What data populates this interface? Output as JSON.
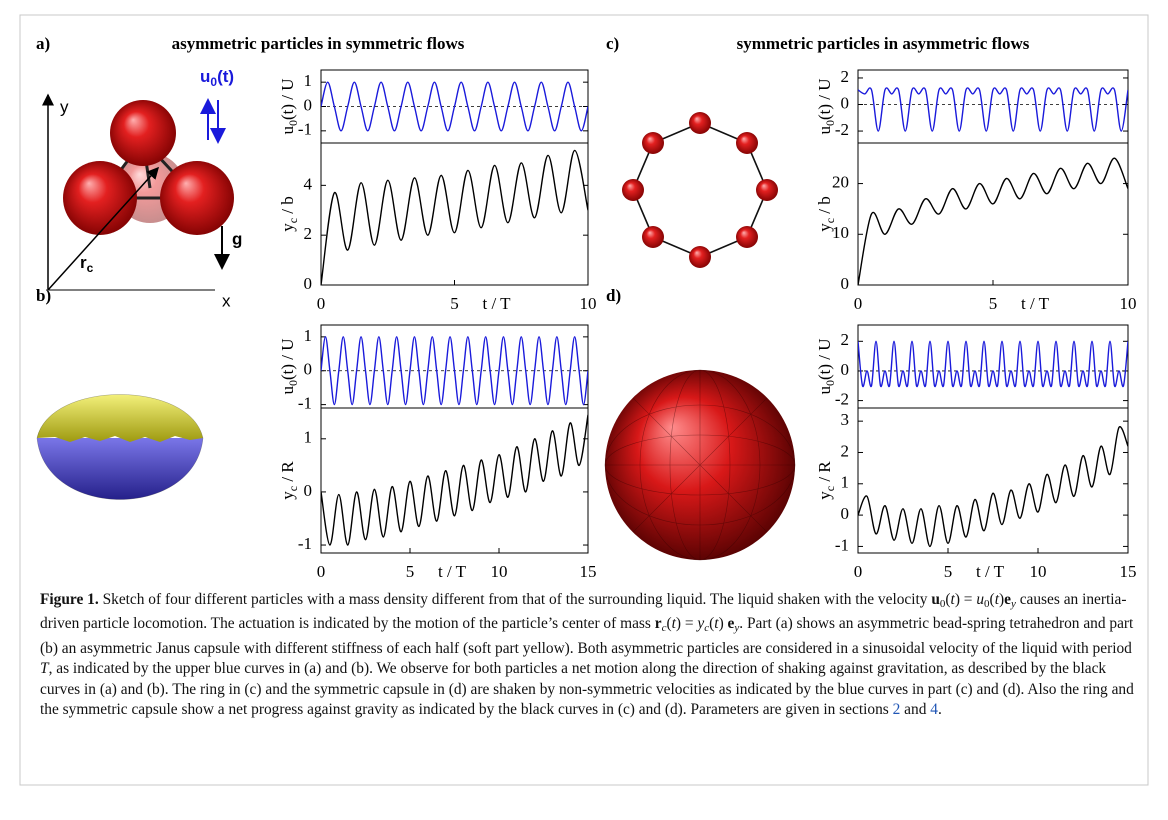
{
  "figure": {
    "panels": [
      {
        "label": "a)",
        "title": "asymmetric particles in symmetric flows"
      },
      {
        "label": "b)"
      },
      {
        "label": "c)",
        "title": "symmetric particles in asymmetric flows"
      },
      {
        "label": "d)"
      }
    ],
    "sketch_labels": {
      "y": "y",
      "x": "x",
      "u": [
        "u",
        "0",
        "(t)"
      ],
      "g": "g",
      "r": [
        "r",
        "c"
      ]
    },
    "caption": [
      {
        "t": "Figure 1.",
        "s": "b"
      },
      {
        "t": " Sketch of four different particles with a mass density different from that of the surrounding liquid. The liquid shaken with the velocity "
      },
      {
        "t": "u",
        "s": "b"
      },
      {
        "t": "0",
        "s": "sub"
      },
      {
        "t": "("
      },
      {
        "t": "t",
        "s": "i"
      },
      {
        "t": ") = "
      },
      {
        "t": "u",
        "s": "i"
      },
      {
        "t": "0",
        "s": "sub"
      },
      {
        "t": "("
      },
      {
        "t": "t",
        "s": "i"
      },
      {
        "t": ")"
      },
      {
        "t": "e",
        "s": "b"
      },
      {
        "t": "y",
        "s": "isub"
      },
      {
        "t": " causes an inertia-driven particle locomotion. The actuation is indicated by the motion of the particle’s center of mass "
      },
      {
        "t": "r",
        "s": "b"
      },
      {
        "t": "c",
        "s": "isub"
      },
      {
        "t": "("
      },
      {
        "t": "t",
        "s": "i"
      },
      {
        "t": ") = "
      },
      {
        "t": "y",
        "s": "i"
      },
      {
        "t": "c",
        "s": "isub"
      },
      {
        "t": "("
      },
      {
        "t": "t",
        "s": "i"
      },
      {
        "t": ") "
      },
      {
        "t": "e",
        "s": "b"
      },
      {
        "t": "y",
        "s": "isub"
      },
      {
        "t": ". Part (a) shows an asymmetric bead-spring tetrahedron and part (b) an asymmetric Janus capsule with different stiffness of each half (soft part yellow). Both asymmetric particles are considered in a sinusoidal velocity of the liquid with period "
      },
      {
        "t": "T",
        "s": "i"
      },
      {
        "t": ", as indicated by the upper blue curves in (a) and (b). We observe for both particles a net motion along the direction of shaking against gravitation, as described by the black curves in (a) and (b). The ring in (c) and the symmetric capsule in (d) are shaken by non-symmetric velocities as indicated by the blue curves in part (c) and (d). Also the ring and the symmetric capsule show a net progress against gravity as indicated by the black curves in (c) and (d). Parameters are given in sections "
      },
      {
        "t": "2",
        "s": "link"
      },
      {
        "t": " and "
      },
      {
        "t": "4",
        "s": "link"
      },
      {
        "t": "."
      }
    ]
  },
  "chart_data": [
    {
      "type": "line",
      "ylabel": [
        "u",
        "0",
        "(t) / U"
      ],
      "color": "#1a1adb",
      "zero_line": true,
      "xlim": [
        0,
        10
      ],
      "ylim": [
        -1.5,
        1.5
      ],
      "yticks": [
        -1,
        0,
        1
      ],
      "x": [
        0,
        0.25,
        0.5,
        0.75,
        1,
        1.25,
        1.5,
        1.75,
        2,
        2.25,
        2.5,
        2.75,
        3,
        3.25,
        3.5,
        3.75,
        4,
        4.25,
        4.5,
        4.75,
        5,
        5.25,
        5.5,
        5.75,
        6,
        6.25,
        6.5,
        6.75,
        7,
        7.25,
        7.5,
        7.75,
        8,
        8.25,
        8.5,
        8.75,
        9,
        9.25,
        9.5,
        9.75,
        10
      ],
      "values": [
        0,
        1,
        0,
        -1,
        0,
        1,
        0,
        -1,
        0,
        1,
        0,
        -1,
        0,
        1,
        0,
        -1,
        0,
        1,
        0,
        -1,
        0,
        1,
        0,
        -1,
        0,
        1,
        0,
        -1,
        0,
        1,
        0,
        -1,
        0,
        1,
        0,
        -1,
        0,
        1,
        0,
        -1,
        0
      ]
    },
    {
      "type": "line",
      "ylabel": [
        "y",
        "c",
        " / b"
      ],
      "color": "#000000",
      "xlim": [
        0,
        10
      ],
      "ylim": [
        0,
        5.7
      ],
      "yticks": [
        0,
        2,
        4
      ],
      "xticks": [
        0,
        5,
        10
      ],
      "xlabel": "t / T",
      "x": [
        0,
        0.5,
        1,
        1.5,
        2,
        2.5,
        3,
        3.5,
        4,
        4.5,
        5,
        5.5,
        6,
        6.5,
        7,
        7.5,
        8,
        8.5,
        9,
        9.5,
        10
      ],
      "values": [
        0,
        3.7,
        1.4,
        4.1,
        1.6,
        4.2,
        1.8,
        4.3,
        2.0,
        4.4,
        2.1,
        4.6,
        2.3,
        4.8,
        2.5,
        4.9,
        2.7,
        5.2,
        2.9,
        5.4,
        3.0
      ]
    },
    {
      "type": "line",
      "ylabel": [
        "u",
        "0",
        "(t) / U"
      ],
      "color": "#1a1adb",
      "zero_line": true,
      "xlim": [
        0,
        10
      ],
      "ylim": [
        -2.9,
        2.6
      ],
      "yticks": [
        -2,
        0,
        2
      ],
      "x": [
        0,
        0.25,
        0.5,
        0.75,
        1,
        1.25,
        1.5,
        1.75,
        2,
        2.25,
        2.5,
        2.75,
        3,
        3.25,
        3.5,
        3.75,
        4,
        4.25,
        4.5,
        4.75,
        5,
        5.25,
        5.5,
        5.75,
        6,
        6.25,
        6.5,
        6.75,
        7,
        7.25,
        7.5,
        7.75,
        8,
        8.25,
        8.5,
        8.75,
        9,
        9.25,
        9.5,
        9.75,
        10
      ],
      "values": [
        1.1,
        0.8,
        1.1,
        -2,
        1.1,
        0.8,
        1.1,
        -2,
        1.1,
        0.8,
        1.1,
        -2,
        1.1,
        0.8,
        1.1,
        -2,
        1.1,
        0.8,
        1.1,
        -2,
        1.1,
        0.8,
        1.1,
        -2,
        1.1,
        0.8,
        1.1,
        -2,
        1.1,
        0.8,
        1.1,
        -2,
        1.1,
        0.8,
        1.1,
        -2,
        1.1,
        0.8,
        1.1,
        -2,
        1.1
      ]
    },
    {
      "type": "line",
      "ylabel": [
        "y",
        "c",
        " / b"
      ],
      "color": "#000000",
      "xlim": [
        0,
        10
      ],
      "ylim": [
        0,
        28
      ],
      "yticks": [
        0,
        10,
        20
      ],
      "xticks": [
        0,
        5,
        10
      ],
      "xlabel": "t / T",
      "x": [
        0,
        0.5,
        1,
        1.5,
        2,
        2.5,
        3,
        3.5,
        4,
        4.5,
        5,
        5.5,
        6,
        6.5,
        7,
        7.5,
        8,
        8.5,
        9,
        9.5,
        10
      ],
      "values": [
        0,
        14,
        10,
        15,
        12,
        17,
        14,
        19,
        15,
        20,
        16,
        21,
        17,
        22,
        18,
        23,
        19,
        24,
        20,
        25,
        19
      ]
    },
    {
      "type": "line",
      "ylabel": [
        "u",
        "0",
        "(t) / U"
      ],
      "color": "#1a1adb",
      "zero_line": true,
      "xlim": [
        0,
        15
      ],
      "ylim": [
        -1.1,
        1.35
      ],
      "yticks": [
        -1,
        0,
        1
      ],
      "x": [
        0,
        0.25,
        0.5,
        0.75,
        1,
        1.25,
        1.5,
        1.75,
        2,
        2.25,
        2.5,
        2.75,
        3,
        3.25,
        3.5,
        3.75,
        4,
        4.25,
        4.5,
        4.75,
        5,
        5.25,
        5.5,
        5.75,
        6,
        6.25,
        6.5,
        6.75,
        7,
        7.25,
        7.5,
        7.75,
        8,
        8.25,
        8.5,
        8.75,
        9,
        9.25,
        9.5,
        9.75,
        10,
        10.25,
        10.5,
        10.75,
        11,
        11.25,
        11.5,
        11.75,
        12,
        12.25,
        12.5,
        12.75,
        13,
        13.25,
        13.5,
        13.75,
        14,
        14.25,
        14.5,
        14.75,
        15
      ],
      "values": [
        0,
        1,
        0,
        -1,
        0,
        1,
        0,
        -1,
        0,
        1,
        0,
        -1,
        0,
        1,
        0,
        -1,
        0,
        1,
        0,
        -1,
        0,
        1,
        0,
        -1,
        0,
        1,
        0,
        -1,
        0,
        1,
        0,
        -1,
        0,
        1,
        0,
        -1,
        0,
        1,
        0,
        -1,
        0,
        1,
        0,
        -1,
        0,
        1,
        0,
        -1,
        0,
        1,
        0,
        -1,
        0,
        1,
        0,
        -1,
        0,
        1,
        0,
        -1,
        0
      ]
    },
    {
      "type": "line",
      "ylabel": [
        "y",
        "c",
        " / R"
      ],
      "color": "#000000",
      "xlim": [
        0,
        15
      ],
      "ylim": [
        -1.15,
        1.58
      ],
      "yticks": [
        -1,
        0,
        1
      ],
      "xticks": [
        0,
        5,
        10,
        15
      ],
      "xlabel": "t / T",
      "x": [
        0,
        0.5,
        1,
        1.5,
        2,
        2.5,
        3,
        3.5,
        4,
        4.5,
        5,
        5.5,
        6,
        6.5,
        7,
        7.5,
        8,
        8.5,
        9,
        9.5,
        10,
        10.5,
        11,
        11.5,
        12,
        12.5,
        13,
        13.5,
        14,
        14.5,
        15
      ],
      "values": [
        0,
        -1.0,
        -0.05,
        -1.0,
        0.0,
        -0.9,
        0.05,
        -0.85,
        0.1,
        -0.75,
        0.2,
        -0.65,
        0.3,
        -0.55,
        0.4,
        -0.45,
        0.5,
        -0.35,
        0.6,
        -0.2,
        0.7,
        -0.1,
        0.85,
        0.0,
        1.0,
        0.2,
        1.15,
        0.3,
        1.3,
        0.5,
        1.45
      ]
    },
    {
      "type": "line",
      "ylabel": [
        "u",
        "0",
        "(t) / U"
      ],
      "color": "#1a1adb",
      "zero_line": true,
      "xlim": [
        0,
        15
      ],
      "ylim": [
        -2.5,
        3.1
      ],
      "yticks": [
        -2,
        0,
        2
      ],
      "x": [
        0,
        0.25,
        0.5,
        0.75,
        1,
        1.25,
        1.5,
        1.75,
        2,
        2.25,
        2.5,
        2.75,
        3,
        3.25,
        3.5,
        3.75,
        4,
        4.25,
        4.5,
        4.75,
        5,
        5.25,
        5.5,
        5.75,
        6,
        6.25,
        6.5,
        6.75,
        7,
        7.25,
        7.5,
        7.75,
        8,
        8.25,
        8.5,
        8.75,
        9,
        9.25,
        9.5,
        9.75,
        10,
        10.25,
        10.5,
        10.75,
        11,
        11.25,
        11.5,
        11.75,
        12,
        12.25,
        12.5,
        12.75,
        13,
        13.25,
        13.5,
        13.75,
        14,
        14.25,
        14.5,
        14.75,
        15
      ],
      "values": [
        2,
        -1,
        0,
        -1,
        2,
        -1,
        0,
        -1,
        2,
        -1,
        0,
        -1,
        2,
        -1,
        0,
        -1,
        2,
        -1,
        0,
        -1,
        2,
        -1,
        0,
        -1,
        2,
        -1,
        0,
        -1,
        2,
        -1,
        0,
        -1,
        2,
        -1,
        0,
        -1,
        2,
        -1,
        0,
        -1,
        2,
        -1,
        0,
        -1,
        2,
        -1,
        0,
        -1,
        2,
        -1,
        0,
        -1,
        2,
        -1,
        0,
        -1,
        2,
        -1,
        0,
        -1,
        2
      ]
    },
    {
      "type": "line",
      "ylabel": [
        "y",
        "c",
        " / R"
      ],
      "color": "#000000",
      "xlim": [
        0,
        15
      ],
      "ylim": [
        -1.21,
        3.42
      ],
      "yticks": [
        -1,
        0,
        1,
        2,
        3
      ],
      "xticks": [
        0,
        5,
        10,
        15
      ],
      "xlabel": "t / T",
      "x": [
        0,
        0.5,
        1,
        1.5,
        2,
        2.5,
        3,
        3.5,
        4,
        4.5,
        5,
        5.5,
        6,
        6.5,
        7,
        7.5,
        8,
        8.5,
        9,
        9.5,
        10,
        10.5,
        11,
        11.5,
        12,
        12.5,
        13,
        13.5,
        14,
        14.5,
        15
      ],
      "values": [
        0,
        0.6,
        -0.6,
        0.3,
        -0.8,
        0.2,
        -0.9,
        0.2,
        -1.0,
        0.3,
        -0.9,
        0.3,
        -0.7,
        0.5,
        -0.5,
        0.7,
        -0.3,
        0.8,
        -0.1,
        1.0,
        0.1,
        1.3,
        0.4,
        1.6,
        0.6,
        1.9,
        0.9,
        2.2,
        1.3,
        2.8,
        2.2
      ]
    }
  ]
}
